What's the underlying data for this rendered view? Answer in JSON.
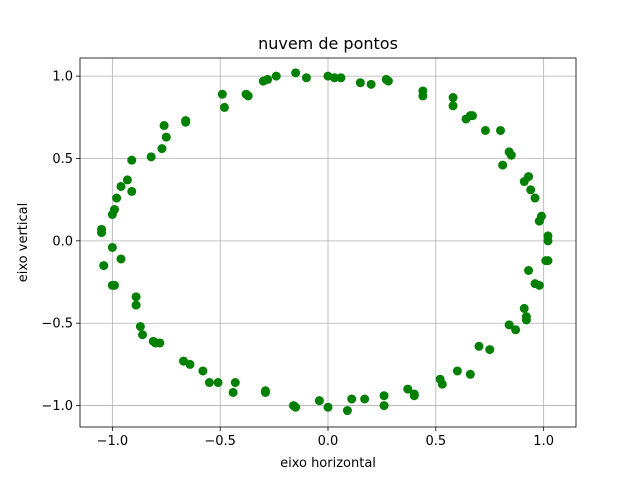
{
  "chart_data": {
    "type": "scatter",
    "title": "nuvem de pontos",
    "xlabel": "eixo horizontal",
    "ylabel": "eixo vertical",
    "xlim": [
      -1.15,
      1.15
    ],
    "ylim": [
      -1.13,
      1.11
    ],
    "xticks": [
      -1.0,
      -0.5,
      0.0,
      0.5,
      1.0
    ],
    "xtick_labels": [
      "−1.0",
      "−0.5",
      "0.0",
      "0.5",
      "1.0"
    ],
    "yticks": [
      -1.0,
      -0.5,
      0.0,
      0.5,
      1.0
    ],
    "ytick_labels": [
      "−1.0",
      "−0.5",
      "0.0",
      "0.5",
      "1.0"
    ],
    "grid": true,
    "marker_color": "#008000",
    "series": [
      {
        "points": [
          [
            -0.15,
            1.02
          ],
          [
            -0.1,
            0.99
          ],
          [
            0.0,
            1.0
          ],
          [
            0.03,
            0.99
          ],
          [
            0.06,
            0.99
          ],
          [
            -0.24,
            1.0
          ],
          [
            -0.28,
            0.98
          ],
          [
            -0.3,
            0.97
          ],
          [
            0.15,
            0.96
          ],
          [
            0.2,
            0.95
          ],
          [
            0.27,
            0.98
          ],
          [
            0.28,
            0.97
          ],
          [
            0.44,
            0.91
          ],
          [
            0.44,
            0.88
          ],
          [
            0.58,
            0.87
          ],
          [
            0.58,
            0.82
          ],
          [
            0.64,
            0.74
          ],
          [
            0.66,
            0.76
          ],
          [
            0.67,
            0.76
          ],
          [
            0.73,
            0.67
          ],
          [
            0.8,
            0.67
          ],
          [
            0.81,
            0.46
          ],
          [
            0.84,
            0.54
          ],
          [
            0.85,
            0.52
          ],
          [
            0.91,
            0.36
          ],
          [
            0.93,
            0.39
          ],
          [
            0.94,
            0.31
          ],
          [
            0.96,
            0.26
          ],
          [
            0.98,
            0.12
          ],
          [
            0.99,
            0.15
          ],
          [
            1.02,
            0.03
          ],
          [
            1.02,
            0.0
          ],
          [
            1.01,
            -0.12
          ],
          [
            1.02,
            -0.12
          ],
          [
            0.93,
            -0.18
          ],
          [
            0.96,
            -0.26
          ],
          [
            0.98,
            -0.27
          ],
          [
            0.91,
            -0.41
          ],
          [
            0.92,
            -0.46
          ],
          [
            0.92,
            -0.48
          ],
          [
            0.84,
            -0.51
          ],
          [
            0.87,
            -0.54
          ],
          [
            0.7,
            -0.64
          ],
          [
            0.75,
            -0.66
          ],
          [
            0.6,
            -0.79
          ],
          [
            0.66,
            -0.81
          ],
          [
            0.52,
            -0.84
          ],
          [
            0.53,
            -0.87
          ],
          [
            0.37,
            -0.9
          ],
          [
            0.4,
            -0.93
          ],
          [
            0.4,
            -0.94
          ],
          [
            0.26,
            -0.94
          ],
          [
            0.26,
            -1.0
          ],
          [
            0.17,
            -0.96
          ],
          [
            0.11,
            -0.96
          ],
          [
            0.09,
            -1.03
          ],
          [
            -0.04,
            -0.97
          ],
          [
            0.0,
            -1.01
          ],
          [
            -0.16,
            -1.0
          ],
          [
            -0.15,
            -1.01
          ],
          [
            -0.29,
            -0.91
          ],
          [
            -0.29,
            -0.92
          ],
          [
            -0.43,
            -0.86
          ],
          [
            -0.44,
            -0.92
          ],
          [
            -0.51,
            -0.86
          ],
          [
            -0.55,
            -0.86
          ],
          [
            -0.58,
            -0.79
          ],
          [
            -0.64,
            -0.75
          ],
          [
            -0.67,
            -0.73
          ],
          [
            -0.78,
            -0.62
          ],
          [
            -0.8,
            -0.62
          ],
          [
            -0.81,
            -0.61
          ],
          [
            -0.86,
            -0.57
          ],
          [
            -0.87,
            -0.52
          ],
          [
            -0.89,
            -0.34
          ],
          [
            -0.89,
            -0.39
          ],
          [
            -0.96,
            -0.11
          ],
          [
            -0.99,
            -0.27
          ],
          [
            -1.0,
            -0.27
          ],
          [
            -1.0,
            -0.04
          ],
          [
            -1.04,
            -0.15
          ],
          [
            -1.05,
            0.05
          ],
          [
            -1.05,
            0.07
          ],
          [
            -1.0,
            0.16
          ],
          [
            -0.99,
            0.19
          ],
          [
            -0.98,
            0.26
          ],
          [
            -0.96,
            0.33
          ],
          [
            -0.93,
            0.37
          ],
          [
            -0.91,
            0.3
          ],
          [
            -0.91,
            0.49
          ],
          [
            -0.82,
            0.51
          ],
          [
            -0.77,
            0.56
          ],
          [
            -0.75,
            0.63
          ],
          [
            -0.76,
            0.7
          ],
          [
            -0.66,
            0.72
          ],
          [
            -0.66,
            0.73
          ],
          [
            -0.48,
            0.81
          ],
          [
            -0.49,
            0.89
          ],
          [
            -0.38,
            0.89
          ],
          [
            -0.37,
            0.88
          ]
        ]
      }
    ]
  }
}
